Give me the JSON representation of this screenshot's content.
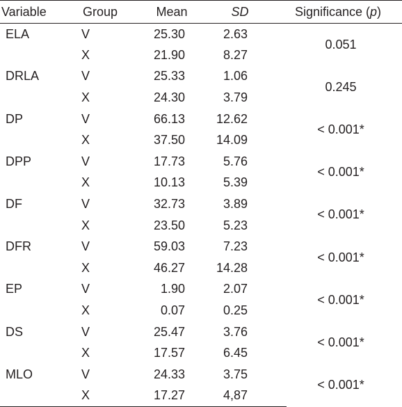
{
  "header": {
    "variable": "Variable",
    "group": "Group",
    "mean": "Mean",
    "sd": "SD",
    "significance_prefix": "Significance (",
    "significance_p": "p",
    "significance_suffix": ")"
  },
  "rows": [
    {
      "variable": "ELA",
      "groups": [
        {
          "group": "V",
          "mean": "25.30",
          "sd": "2.63"
        },
        {
          "group": "X",
          "mean": "21.90",
          "sd": "8.27"
        }
      ],
      "significance": "0.051"
    },
    {
      "variable": "DRLA",
      "groups": [
        {
          "group": "V",
          "mean": "25.33",
          "sd": "1.06"
        },
        {
          "group": "X",
          "mean": "24.30",
          "sd": "3.79"
        }
      ],
      "significance": "0.245"
    },
    {
      "variable": "DP",
      "groups": [
        {
          "group": "V",
          "mean": "66.13",
          "sd": "12.62"
        },
        {
          "group": "X",
          "mean": "37.50",
          "sd": "14.09"
        }
      ],
      "significance": "< 0.001*"
    },
    {
      "variable": "DPP",
      "groups": [
        {
          "group": "V",
          "mean": "17.73",
          "sd": "5.76"
        },
        {
          "group": "X",
          "mean": "10.13",
          "sd": "5.39"
        }
      ],
      "significance": "< 0.001*"
    },
    {
      "variable": "DF",
      "groups": [
        {
          "group": "V",
          "mean": "32.73",
          "sd": "3.89"
        },
        {
          "group": "X",
          "mean": "23.50",
          "sd": "5.23"
        }
      ],
      "significance": "< 0.001*"
    },
    {
      "variable": "DFR",
      "groups": [
        {
          "group": "V",
          "mean": "59.03",
          "sd": "7.23"
        },
        {
          "group": "X",
          "mean": "46.27",
          "sd": "14.28"
        }
      ],
      "significance": "< 0.001*"
    },
    {
      "variable": "EP",
      "groups": [
        {
          "group": "V",
          "mean": "1.90",
          "sd": "2.07"
        },
        {
          "group": "X",
          "mean": "0.07",
          "sd": "0.25"
        }
      ],
      "significance": "< 0.001*"
    },
    {
      "variable": "DS",
      "groups": [
        {
          "group": "V",
          "mean": "25.47",
          "sd": "3.76"
        },
        {
          "group": "X",
          "mean": "17.57",
          "sd": "6.45"
        }
      ],
      "significance": "< 0.001*"
    },
    {
      "variable": "MLO",
      "groups": [
        {
          "group": "V",
          "mean": "24.33",
          "sd": "3.75"
        },
        {
          "group": "X",
          "mean": "17.27",
          "sd": "4,87"
        }
      ],
      "significance": "< 0.001*"
    }
  ]
}
